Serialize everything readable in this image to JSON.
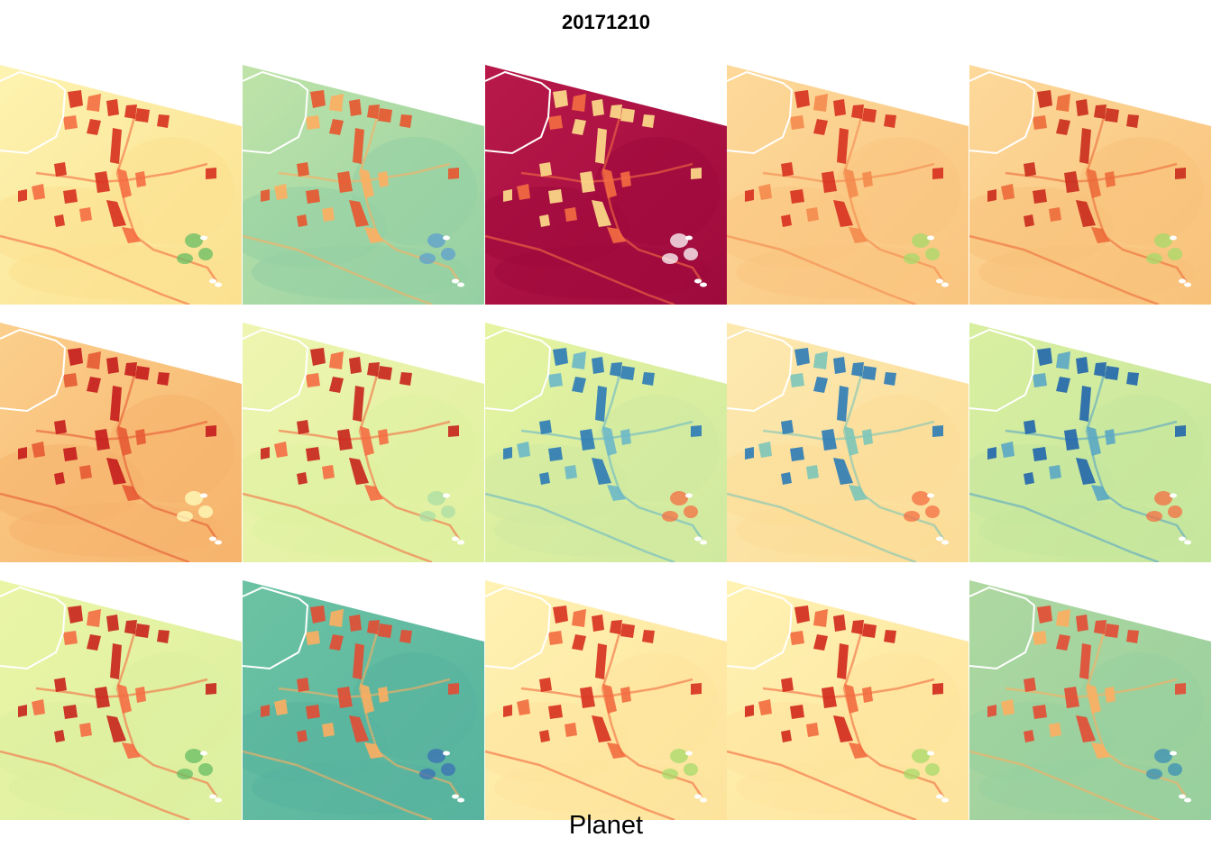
{
  "title": "20171210",
  "caption": "Planet",
  "panels": [
    {
      "base": "#fdf3b0",
      "base2": "#fbe08f",
      "field": "#d7301f",
      "field2": "#f46d43",
      "accent": "#66bd63"
    },
    {
      "base": "#bfe3a8",
      "base2": "#94d0a4",
      "field": "#e8542f",
      "field2": "#fdae61",
      "accent": "#5e9fcf"
    },
    {
      "base": "#b8194a",
      "base2": "#9e0a3c",
      "field": "#fee08b",
      "field2": "#f46d43",
      "accent": "#ffffff"
    },
    {
      "base": "#fdd99a",
      "base2": "#f9c57f",
      "field": "#d7301f",
      "field2": "#f4894e",
      "accent": "#a6d96a"
    },
    {
      "base": "#fdd99a",
      "base2": "#f8c17a",
      "field": "#c92a1c",
      "field2": "#ec6a3a",
      "accent": "#a6d96a"
    },
    {
      "base": "#fbcf8c",
      "base2": "#f6b36b",
      "field": "#c41c1c",
      "field2": "#e65a34",
      "accent": "#ffffbf"
    },
    {
      "base": "#eef5b0",
      "base2": "#dff0a0",
      "field": "#c8231c",
      "field2": "#f46d43",
      "accent": "#abdda4"
    },
    {
      "base": "#e6f4a0",
      "base2": "#cfe9a0",
      "field": "#2c7bb6",
      "field2": "#6bb8c8",
      "accent": "#f46d43"
    },
    {
      "base": "#fde9b0",
      "base2": "#fbdc97",
      "field": "#2c7bb6",
      "field2": "#7cc5b8",
      "accent": "#f46d43"
    },
    {
      "base": "#d9efa0",
      "base2": "#c5e69d",
      "field": "#2166ac",
      "field2": "#5aa7c4",
      "accent": "#f46d43"
    },
    {
      "base": "#eaf5a6",
      "base2": "#dcefa0",
      "field": "#c8231c",
      "field2": "#f46d43",
      "accent": "#66bd63"
    },
    {
      "base": "#6cc3a3",
      "base2": "#57b39e",
      "field": "#e34a33",
      "field2": "#fdae61",
      "accent": "#3b6fb6"
    },
    {
      "base": "#fff2b3",
      "base2": "#fde39c",
      "field": "#d7301f",
      "field2": "#f26b3f",
      "accent": "#a6d96a"
    },
    {
      "base": "#fff2b3",
      "base2": "#fde39c",
      "field": "#d2281c",
      "field2": "#f26b3f",
      "accent": "#a6d96a"
    },
    {
      "base": "#aed8a0",
      "base2": "#98cf9e",
      "field": "#e34a33",
      "field2": "#fdae61",
      "accent": "#3b8fb6"
    }
  ]
}
